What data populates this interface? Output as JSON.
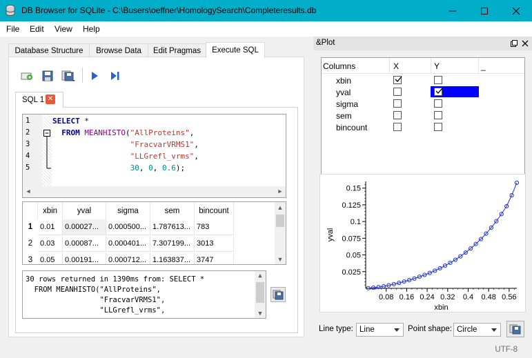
{
  "window": {
    "title": "DB Browser for SQLite - C:\\Busers\\oeffner\\HomologySearch\\Completeresults.db",
    "titlebar_color": "#00aec9"
  },
  "menu": [
    "File",
    "Edit",
    "View",
    "Help"
  ],
  "tabs": [
    "Database Structure",
    "Browse Data",
    "Edit Pragmas",
    "Execute SQL"
  ],
  "active_tab": "Execute SQL",
  "toolbar_icons": [
    "open-tab-icon",
    "save-sql-icon",
    "save-results-icon",
    "execute-all-icon",
    "execute-line-icon"
  ],
  "sql_tab": {
    "label": "SQL 1"
  },
  "editor": {
    "line_numbers": [
      "1",
      "2",
      "3",
      "4",
      "5"
    ],
    "lines": [
      [
        {
          "t": "SELECT",
          "c": "kw"
        },
        {
          "t": " *",
          "c": ""
        }
      ],
      [
        {
          "t": "  FROM",
          "c": "kw"
        },
        {
          "t": " ",
          "c": ""
        },
        {
          "t": "MEANHISTO",
          "c": "fn"
        },
        {
          "t": "(",
          "c": ""
        },
        {
          "t": "\"AllProteins\"",
          "c": "str"
        },
        {
          "t": ",",
          "c": ""
        }
      ],
      [
        {
          "t": "                 ",
          "c": ""
        },
        {
          "t": "\"FracvarVRMS1\"",
          "c": "str"
        },
        {
          "t": ",",
          "c": ""
        }
      ],
      [
        {
          "t": "                 ",
          "c": ""
        },
        {
          "t": "\"LLGrefl_vrms\"",
          "c": "str"
        },
        {
          "t": ",",
          "c": ""
        }
      ],
      [
        {
          "t": "                 ",
          "c": ""
        },
        {
          "t": "30",
          "c": "num"
        },
        {
          "t": ", ",
          "c": ""
        },
        {
          "t": "0",
          "c": "num"
        },
        {
          "t": ", ",
          "c": ""
        },
        {
          "t": "0.6",
          "c": "num"
        },
        {
          "t": ");",
          "c": ""
        }
      ]
    ]
  },
  "results": {
    "columns": [
      "xbin",
      "yval",
      "sigma",
      "sem",
      "bincount"
    ],
    "rows": [
      {
        "n": "1",
        "cells": [
          "0.01",
          "0.00027...",
          "0.000500...",
          "1.787613...",
          "783"
        ]
      },
      {
        "n": "2",
        "cells": [
          "0.03",
          "0.00087...",
          "0.000401...",
          "7.307199...",
          "3013"
        ]
      },
      {
        "n": "3",
        "cells": [
          "0.05",
          "0.00191...",
          "0.000712...",
          "1.163837...",
          "3747"
        ]
      }
    ]
  },
  "message": {
    "lines": [
      "30 rows returned in 1390ms from: SELECT *",
      "  FROM MEANHISTO(\"AllProteins\",",
      "                 \"FracvarVRMS1\",",
      "                 \"LLGrefl_vrms\","
    ]
  },
  "plot_panel": {
    "title": "&Plot",
    "headers": [
      "Columns",
      "X",
      "Y",
      "_"
    ],
    "columns": [
      {
        "name": "xbin",
        "x": true,
        "y": false
      },
      {
        "name": "yval",
        "x": false,
        "y": true
      },
      {
        "name": "sigma",
        "x": false,
        "y": false
      },
      {
        "name": "sem",
        "x": false,
        "y": false
      },
      {
        "name": "bincount",
        "x": false,
        "y": false
      }
    ],
    "highlight_color": "#0000ff",
    "line_type_label": "Line type:",
    "line_type_value": "Line",
    "point_shape_label": "Point shape:",
    "point_shape_value": "Circle"
  },
  "chart_data": {
    "type": "line",
    "xlabel": "xbin",
    "ylabel": "yval",
    "xticks": [
      "0.08",
      "0.16",
      "0.24",
      "0.32",
      "0.4",
      "0.48",
      "0.56"
    ],
    "yticks": [
      "0.025",
      "0.05",
      "0.075",
      "0.1",
      "0.125",
      "0.15"
    ],
    "xlim": [
      0.0,
      0.59
    ],
    "ylim": [
      0.0,
      0.16
    ],
    "series": [
      {
        "color": "#1f2fd0",
        "marker": "circle",
        "x": [
          0.01,
          0.03,
          0.05,
          0.07,
          0.09,
          0.11,
          0.13,
          0.15,
          0.17,
          0.19,
          0.21,
          0.23,
          0.25,
          0.27,
          0.29,
          0.31,
          0.33,
          0.35,
          0.37,
          0.39,
          0.41,
          0.43,
          0.45,
          0.47,
          0.49,
          0.51,
          0.53,
          0.55,
          0.57,
          0.59
        ],
        "y": [
          0.0003,
          0.0009,
          0.0019,
          0.003,
          0.0045,
          0.0062,
          0.0081,
          0.0101,
          0.0123,
          0.0147,
          0.0173,
          0.0201,
          0.0231,
          0.0264,
          0.03,
          0.0339,
          0.0381,
          0.0428,
          0.0479,
          0.0535,
          0.0597,
          0.0664,
          0.0738,
          0.0819,
          0.0908,
          0.1005,
          0.1112,
          0.1229,
          0.1392,
          0.158
        ]
      }
    ]
  },
  "status": {
    "encoding": "UTF-8"
  }
}
